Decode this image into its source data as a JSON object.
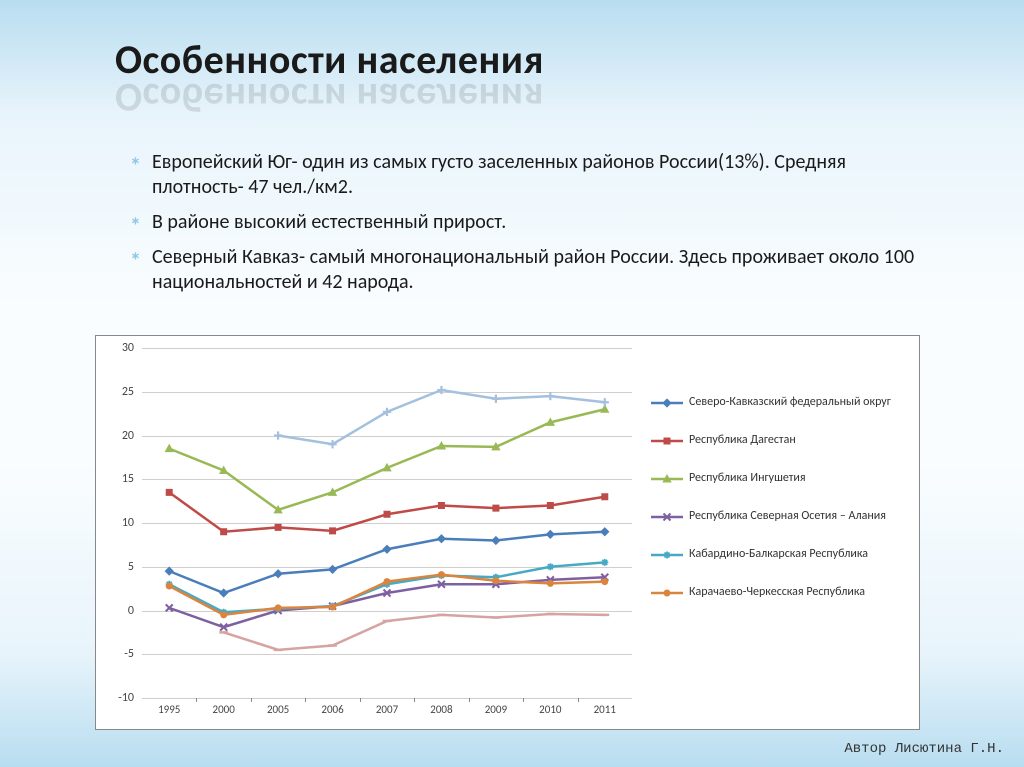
{
  "title": "Особенности населения",
  "bullets": [
    "Европейский Юг- один из самых густо заселенных районов России(13%). Средняя плотность- 47 чел./км2.",
    "В районе высокий естественный прирост.",
    "Северный Кавказ- самый многонациональный район России. Здесь проживает около 100 национальностей и 42 народа."
  ],
  "author": "Автор Лисютина Г.Н.",
  "chart": {
    "type": "line",
    "categories": [
      "1995",
      "2000",
      "2005",
      "2006",
      "2007",
      "2008",
      "2009",
      "2010",
      "2011"
    ],
    "ylim": [
      -10,
      30
    ],
    "ytick_step": 5,
    "grid_color": "#cfcfcf",
    "background_color": "#ffffff",
    "border_color": "#888888",
    "label_fontsize": 12,
    "line_width": 2.5,
    "marker_size": 7,
    "series": [
      {
        "name": "Северо-Кавказский федеральный округ",
        "color": "#4a7ebb",
        "marker": "diamond",
        "values": [
          4.5,
          2.0,
          4.2,
          4.7,
          7.0,
          8.2,
          8.0,
          8.7,
          9.0
        ]
      },
      {
        "name": "Республика Дагестан",
        "color": "#be4b48",
        "marker": "square",
        "values": [
          13.5,
          9.0,
          9.5,
          9.1,
          11.0,
          12.0,
          11.7,
          12.0,
          13.0
        ]
      },
      {
        "name": "Республика Ингушетия",
        "color": "#98b954",
        "marker": "triangle",
        "values": [
          18.5,
          16.0,
          11.5,
          13.5,
          16.3,
          18.8,
          18.7,
          21.5,
          23.0
        ]
      },
      {
        "name": "Республика Северная Осетия – Алания",
        "color": "#7d60a0",
        "marker": "x",
        "values": [
          0.3,
          -1.9,
          0.0,
          0.5,
          2.0,
          3.0,
          3.0,
          3.5,
          3.8
        ]
      },
      {
        "name": "Кабардино-Балкарская Республика",
        "color": "#46aac5",
        "marker": "star",
        "values": [
          3.0,
          -0.2,
          0.2,
          0.5,
          3.0,
          4.0,
          3.8,
          5.0,
          5.5
        ]
      },
      {
        "name": "Карачаево-Черкесская Республика",
        "color": "#db843d",
        "marker": "circle",
        "values": [
          2.8,
          -0.5,
          0.3,
          0.4,
          3.3,
          4.1,
          3.4,
          3.1,
          3.3
        ]
      },
      {
        "name": "",
        "color": "#a3c0de",
        "marker": "plus",
        "values": [
          null,
          null,
          20.0,
          19.0,
          22.7,
          25.2,
          24.2,
          24.5,
          23.8
        ]
      },
      {
        "name": "",
        "color": "#d6a3a2",
        "marker": "dash",
        "values": [
          null,
          -2.5,
          -4.5,
          -4.0,
          -1.2,
          -0.5,
          -0.8,
          -0.4,
          -0.5
        ]
      }
    ]
  }
}
